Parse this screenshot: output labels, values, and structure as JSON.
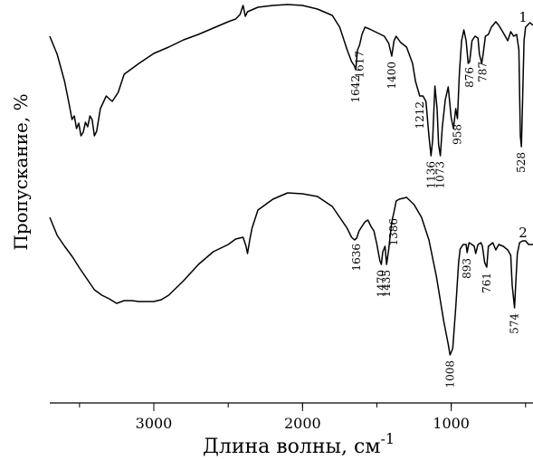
{
  "chart_data": {
    "type": "line",
    "xlabel": "Длина волны, см",
    "xlabel_sup": "-1",
    "ylabel": "Пропускание, %",
    "x_reversed": true,
    "xlim": [
      3700,
      450
    ],
    "xticks": [
      3000,
      2000,
      1000
    ],
    "xtick_labels": [
      "3000",
      "2000",
      "1000"
    ],
    "series": [
      {
        "name": "1",
        "label": "1",
        "points": [
          [
            3700,
            40
          ],
          [
            3650,
            60
          ],
          [
            3600,
            90
          ],
          [
            3570,
            115
          ],
          [
            3550,
            132
          ],
          [
            3535,
            128
          ],
          [
            3520,
            142
          ],
          [
            3505,
            136
          ],
          [
            3490,
            150
          ],
          [
            3475,
            146
          ],
          [
            3460,
            135
          ],
          [
            3445,
            140
          ],
          [
            3430,
            128
          ],
          [
            3415,
            132
          ],
          [
            3400,
            150
          ],
          [
            3385,
            145
          ],
          [
            3360,
            120
          ],
          [
            3320,
            106
          ],
          [
            3280,
            112
          ],
          [
            3240,
            102
          ],
          [
            3200,
            82
          ],
          [
            3100,
            70
          ],
          [
            3000,
            59
          ],
          [
            2900,
            52
          ],
          [
            2800,
            44
          ],
          [
            2700,
            38
          ],
          [
            2600,
            31
          ],
          [
            2500,
            24
          ],
          [
            2450,
            21
          ],
          [
            2420,
            16
          ],
          [
            2400,
            6
          ],
          [
            2385,
            18
          ],
          [
            2370,
            13
          ],
          [
            2300,
            8
          ],
          [
            2200,
            6
          ],
          [
            2100,
            5
          ],
          [
            2000,
            6
          ],
          [
            1900,
            10
          ],
          [
            1800,
            17
          ],
          [
            1750,
            30
          ],
          [
            1700,
            55
          ],
          [
            1670,
            68
          ],
          [
            1650,
            73
          ],
          [
            1642,
            77
          ],
          [
            1630,
            55
          ],
          [
            1617,
            50
          ],
          [
            1600,
            38
          ],
          [
            1580,
            30
          ],
          [
            1550,
            32
          ],
          [
            1500,
            36
          ],
          [
            1450,
            40
          ],
          [
            1420,
            48
          ],
          [
            1400,
            62
          ],
          [
            1385,
            45
          ],
          [
            1370,
            40
          ],
          [
            1340,
            47
          ],
          [
            1300,
            52
          ],
          [
            1260,
            70
          ],
          [
            1240,
            90
          ],
          [
            1212,
            106
          ],
          [
            1190,
            106
          ],
          [
            1170,
            112
          ],
          [
            1150,
            150
          ],
          [
            1136,
            172
          ],
          [
            1125,
            155
          ],
          [
            1110,
            95
          ],
          [
            1095,
            120
          ],
          [
            1085,
            160
          ],
          [
            1073,
            172
          ],
          [
            1060,
            140
          ],
          [
            1040,
            110
          ],
          [
            1020,
            96
          ],
          [
            1000,
            130
          ],
          [
            985,
            142
          ],
          [
            970,
            120
          ],
          [
            958,
            131
          ],
          [
            945,
            80
          ],
          [
            930,
            45
          ],
          [
            915,
            33
          ],
          [
            900,
            45
          ],
          [
            886,
            70
          ],
          [
            876,
            68
          ],
          [
            860,
            45
          ],
          [
            840,
            40
          ],
          [
            820,
            42
          ],
          [
            810,
            60
          ],
          [
            795,
            70
          ],
          [
            787,
            62
          ],
          [
            770,
            40
          ],
          [
            750,
            38
          ],
          [
            730,
            30
          ],
          [
            700,
            24
          ],
          [
            680,
            28
          ],
          [
            650,
            36
          ],
          [
            620,
            45
          ],
          [
            600,
            35
          ],
          [
            580,
            40
          ],
          [
            560,
            38
          ],
          [
            545,
            55
          ],
          [
            535,
            150
          ],
          [
            528,
            162
          ],
          [
            520,
            110
          ],
          [
            510,
            45
          ],
          [
            500,
            30
          ],
          [
            470,
            25
          ],
          [
            450,
            28
          ]
        ]
      },
      {
        "name": "2",
        "label": "2",
        "points": [
          [
            3700,
            240
          ],
          [
            3650,
            260
          ],
          [
            3600,
            272
          ],
          [
            3550,
            283
          ],
          [
            3500,
            296
          ],
          [
            3450,
            308
          ],
          [
            3400,
            320
          ],
          [
            3350,
            326
          ],
          [
            3300,
            330
          ],
          [
            3250,
            335
          ],
          [
            3200,
            332
          ],
          [
            3150,
            332
          ],
          [
            3100,
            333
          ],
          [
            3000,
            333
          ],
          [
            2950,
            331
          ],
          [
            2900,
            326
          ],
          [
            2800,
            310
          ],
          [
            2700,
            292
          ],
          [
            2600,
            278
          ],
          [
            2500,
            270
          ],
          [
            2450,
            264
          ],
          [
            2400,
            262
          ],
          [
            2380,
            272
          ],
          [
            2370,
            280
          ],
          [
            2355,
            265
          ],
          [
            2340,
            252
          ],
          [
            2300,
            232
          ],
          [
            2200,
            220
          ],
          [
            2100,
            213
          ],
          [
            2000,
            214
          ],
          [
            1900,
            217
          ],
          [
            1800,
            228
          ],
          [
            1750,
            240
          ],
          [
            1700,
            252
          ],
          [
            1670,
            262
          ],
          [
            1650,
            265
          ],
          [
            1636,
            263
          ],
          [
            1620,
            255
          ],
          [
            1600,
            250
          ],
          [
            1580,
            245
          ],
          [
            1560,
            243
          ],
          [
            1540,
            250
          ],
          [
            1520,
            255
          ],
          [
            1500,
            270
          ],
          [
            1480,
            288
          ],
          [
            1470,
            292
          ],
          [
            1460,
            278
          ],
          [
            1445,
            272
          ],
          [
            1435,
            292
          ],
          [
            1420,
            275
          ],
          [
            1400,
            245
          ],
          [
            1386,
            235
          ],
          [
            1370,
            222
          ],
          [
            1350,
            220
          ],
          [
            1300,
            218
          ],
          [
            1250,
            226
          ],
          [
            1200,
            240
          ],
          [
            1150,
            265
          ],
          [
            1100,
            305
          ],
          [
            1050,
            355
          ],
          [
            1020,
            380
          ],
          [
            1008,
            392
          ],
          [
            990,
            385
          ],
          [
            970,
            340
          ],
          [
            950,
            290
          ],
          [
            940,
            275
          ],
          [
            920,
            270
          ],
          [
            900,
            270
          ],
          [
            893,
            279
          ],
          [
            880,
            268
          ],
          [
            860,
            270
          ],
          [
            845,
            272
          ],
          [
            835,
            280
          ],
          [
            820,
            270
          ],
          [
            800,
            268
          ],
          [
            790,
            272
          ],
          [
            775,
            290
          ],
          [
            761,
            295
          ],
          [
            750,
            272
          ],
          [
            720,
            268
          ],
          [
            700,
            276
          ],
          [
            680,
            270
          ],
          [
            650,
            272
          ],
          [
            620,
            276
          ],
          [
            600,
            282
          ],
          [
            590,
            315
          ],
          [
            574,
            340
          ],
          [
            565,
            310
          ],
          [
            555,
            280
          ],
          [
            540,
            268
          ],
          [
            520,
            266
          ],
          [
            500,
            266
          ],
          [
            480,
            270
          ],
          [
            450,
            270
          ]
        ]
      }
    ],
    "annotations": [
      {
        "series": "1",
        "text": "1642",
        "x": 1642
      },
      {
        "series": "1",
        "text": "1617",
        "x": 1617
      },
      {
        "series": "1",
        "text": "1400",
        "x": 1400
      },
      {
        "series": "1",
        "text": "1212",
        "x": 1212
      },
      {
        "series": "1",
        "text": "1136",
        "x": 1136
      },
      {
        "series": "1",
        "text": "1073",
        "x": 1073
      },
      {
        "series": "1",
        "text": "958",
        "x": 958
      },
      {
        "series": "1",
        "text": "876",
        "x": 876
      },
      {
        "series": "1",
        "text": "787",
        "x": 787
      },
      {
        "series": "1",
        "text": "528",
        "x": 528
      },
      {
        "series": "2",
        "text": "1636",
        "x": 1636
      },
      {
        "series": "2",
        "text": "1470",
        "x": 1470
      },
      {
        "series": "2",
        "text": "1435",
        "x": 1435
      },
      {
        "series": "2",
        "text": "1386",
        "x": 1386
      },
      {
        "series": "2",
        "text": "1008",
        "x": 1008
      },
      {
        "series": "2",
        "text": "893",
        "x": 893
      },
      {
        "series": "2",
        "text": "761",
        "x": 761
      },
      {
        "series": "2",
        "text": "574",
        "x": 574
      }
    ],
    "grid": false,
    "legend": "none"
  }
}
